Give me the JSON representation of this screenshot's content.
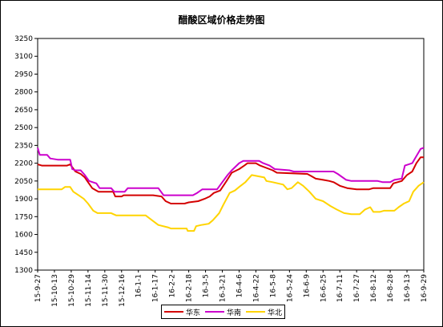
{
  "chart_data": {
    "type": "line",
    "title": "醋酸区域价格走势图",
    "xlabel": "",
    "ylabel": "",
    "ylim": [
      1300,
      3250
    ],
    "yticks": [
      1300,
      1450,
      1600,
      1750,
      1900,
      2050,
      2200,
      2350,
      2500,
      2650,
      2800,
      2950,
      3100,
      3250
    ],
    "grid": false,
    "legend_position": "bottom",
    "x_tick_labels": [
      "15-9-27",
      "15-10-13",
      "15-10-29",
      "15-11-14",
      "15-11-30",
      "15-12-16",
      "16-1-1",
      "16-1-17",
      "16-2-2",
      "16-2-18",
      "16-3-5",
      "16-3-21",
      "16-4-6",
      "16-4-22",
      "16-5-8",
      "16-5-24",
      "16-6-9",
      "16-6-25",
      "16-7-11",
      "16-7-27",
      "16-8-12",
      "16-8-28",
      "16-9-13",
      "16-9-29"
    ],
    "x_start": "2015-09-27",
    "x_end": "2016-09-29",
    "series": [
      {
        "name": "华东",
        "color": "#d40000",
        "points": [
          [
            "2015-09-27",
            2190
          ],
          [
            "2015-10-01",
            2180
          ],
          [
            "2015-10-25",
            2180
          ],
          [
            "2015-10-28",
            2190
          ],
          [
            "2015-11-02",
            2130
          ],
          [
            "2015-11-07",
            2110
          ],
          [
            "2015-11-11",
            2080
          ],
          [
            "2015-11-14",
            2040
          ],
          [
            "2015-11-18",
            1990
          ],
          [
            "2015-11-22",
            1970
          ],
          [
            "2015-11-24",
            1960
          ],
          [
            "2015-12-08",
            1960
          ],
          [
            "2015-12-10",
            1920
          ],
          [
            "2015-12-16",
            1920
          ],
          [
            "2015-12-18",
            1930
          ],
          [
            "2016-01-15",
            1930
          ],
          [
            "2016-01-23",
            1920
          ],
          [
            "2016-01-27",
            1880
          ],
          [
            "2016-02-01",
            1860
          ],
          [
            "2016-02-14",
            1860
          ],
          [
            "2016-02-18",
            1870
          ],
          [
            "2016-02-27",
            1880
          ],
          [
            "2016-03-04",
            1900
          ],
          [
            "2016-03-09",
            1920
          ],
          [
            "2016-03-13",
            1950
          ],
          [
            "2016-03-19",
            1970
          ],
          [
            "2016-03-25",
            2050
          ],
          [
            "2016-03-30",
            2120
          ],
          [
            "2016-04-06",
            2150
          ],
          [
            "2016-04-11",
            2180
          ],
          [
            "2016-04-14",
            2200
          ],
          [
            "2016-04-22",
            2200
          ],
          [
            "2016-04-26",
            2180
          ],
          [
            "2016-05-02",
            2160
          ],
          [
            "2016-05-08",
            2140
          ],
          [
            "2016-05-12",
            2120
          ],
          [
            "2016-06-10",
            2110
          ],
          [
            "2016-06-14",
            2090
          ],
          [
            "2016-06-18",
            2070
          ],
          [
            "2016-06-25",
            2060
          ],
          [
            "2016-07-01",
            2050
          ],
          [
            "2016-07-05",
            2040
          ],
          [
            "2016-07-11",
            2010
          ],
          [
            "2016-07-18",
            1990
          ],
          [
            "2016-07-27",
            1980
          ],
          [
            "2016-08-08",
            1980
          ],
          [
            "2016-08-12",
            1990
          ],
          [
            "2016-08-28",
            1990
          ],
          [
            "2016-08-31",
            2030
          ],
          [
            "2016-09-08",
            2050
          ],
          [
            "2016-09-13",
            2100
          ],
          [
            "2016-09-18",
            2130
          ],
          [
            "2016-09-22",
            2200
          ],
          [
            "2016-09-26",
            2250
          ],
          [
            "2016-09-29",
            2250
          ]
        ]
      },
      {
        "name": "华南",
        "color": "#cc00cc",
        "points": [
          [
            "2015-09-27",
            2330
          ],
          [
            "2015-09-29",
            2270
          ],
          [
            "2015-10-06",
            2270
          ],
          [
            "2015-10-09",
            2240
          ],
          [
            "2015-10-16",
            2230
          ],
          [
            "2015-10-28",
            2230
          ],
          [
            "2015-10-30",
            2150
          ],
          [
            "2015-11-02",
            2140
          ],
          [
            "2015-11-07",
            2140
          ],
          [
            "2015-11-11",
            2100
          ],
          [
            "2015-11-15",
            2050
          ],
          [
            "2015-11-22",
            2030
          ],
          [
            "2015-11-25",
            1990
          ],
          [
            "2015-12-06",
            1990
          ],
          [
            "2015-12-09",
            1960
          ],
          [
            "2015-12-19",
            1960
          ],
          [
            "2015-12-22",
            1990
          ],
          [
            "2016-01-20",
            1990
          ],
          [
            "2016-01-25",
            1930
          ],
          [
            "2016-02-22",
            1930
          ],
          [
            "2016-02-26",
            1950
          ],
          [
            "2016-03-02",
            1980
          ],
          [
            "2016-03-16",
            1980
          ],
          [
            "2016-03-21",
            2040
          ],
          [
            "2016-03-26",
            2100
          ],
          [
            "2016-03-30",
            2140
          ],
          [
            "2016-04-06",
            2200
          ],
          [
            "2016-04-10",
            2220
          ],
          [
            "2016-04-25",
            2220
          ],
          [
            "2016-04-29",
            2200
          ],
          [
            "2016-05-05",
            2180
          ],
          [
            "2016-05-10",
            2150
          ],
          [
            "2016-05-24",
            2140
          ],
          [
            "2016-05-28",
            2130
          ],
          [
            "2016-07-05",
            2130
          ],
          [
            "2016-07-09",
            2110
          ],
          [
            "2016-07-17",
            2060
          ],
          [
            "2016-07-22",
            2050
          ],
          [
            "2016-08-16",
            2050
          ],
          [
            "2016-08-21",
            2040
          ],
          [
            "2016-08-28",
            2040
          ],
          [
            "2016-09-01",
            2060
          ],
          [
            "2016-09-08",
            2070
          ],
          [
            "2016-09-11",
            2180
          ],
          [
            "2016-09-18",
            2200
          ],
          [
            "2016-09-22",
            2260
          ],
          [
            "2016-09-26",
            2320
          ],
          [
            "2016-09-29",
            2330
          ]
        ]
      },
      {
        "name": "华北",
        "color": "#ffd400",
        "points": [
          [
            "2015-09-27",
            1980
          ],
          [
            "2015-10-20",
            1980
          ],
          [
            "2015-10-23",
            2000
          ],
          [
            "2015-10-28",
            2000
          ],
          [
            "2015-10-31",
            1960
          ],
          [
            "2015-11-05",
            1930
          ],
          [
            "2015-11-10",
            1900
          ],
          [
            "2015-11-14",
            1860
          ],
          [
            "2015-11-19",
            1800
          ],
          [
            "2015-11-23",
            1780
          ],
          [
            "2015-12-06",
            1780
          ],
          [
            "2015-12-11",
            1760
          ],
          [
            "2016-01-08",
            1760
          ],
          [
            "2016-01-14",
            1720
          ],
          [
            "2016-01-20",
            1680
          ],
          [
            "2016-01-29",
            1660
          ],
          [
            "2016-02-01",
            1650
          ],
          [
            "2016-02-16",
            1650
          ],
          [
            "2016-02-17",
            1630
          ],
          [
            "2016-02-23",
            1630
          ],
          [
            "2016-02-25",
            1670
          ],
          [
            "2016-03-01",
            1680
          ],
          [
            "2016-03-08",
            1690
          ],
          [
            "2016-03-12",
            1720
          ],
          [
            "2016-03-18",
            1780
          ],
          [
            "2016-03-22",
            1850
          ],
          [
            "2016-03-28",
            1950
          ],
          [
            "2016-04-02",
            1970
          ],
          [
            "2016-04-06",
            2000
          ],
          [
            "2016-04-12",
            2040
          ],
          [
            "2016-04-18",
            2100
          ],
          [
            "2016-04-24",
            2090
          ],
          [
            "2016-04-30",
            2080
          ],
          [
            "2016-05-02",
            2050
          ],
          [
            "2016-05-08",
            2040
          ],
          [
            "2016-05-18",
            2020
          ],
          [
            "2016-05-22",
            1980
          ],
          [
            "2016-05-26",
            1990
          ],
          [
            "2016-06-01",
            2040
          ],
          [
            "2016-06-06",
            2010
          ],
          [
            "2016-06-12",
            1960
          ],
          [
            "2016-06-18",
            1900
          ],
          [
            "2016-06-25",
            1880
          ],
          [
            "2016-07-02",
            1840
          ],
          [
            "2016-07-08",
            1810
          ],
          [
            "2016-07-15",
            1780
          ],
          [
            "2016-07-22",
            1770
          ],
          [
            "2016-07-30",
            1770
          ],
          [
            "2016-08-04",
            1810
          ],
          [
            "2016-08-09",
            1830
          ],
          [
            "2016-08-12",
            1790
          ],
          [
            "2016-08-18",
            1790
          ],
          [
            "2016-08-22",
            1800
          ],
          [
            "2016-09-01",
            1800
          ],
          [
            "2016-09-05",
            1830
          ],
          [
            "2016-09-10",
            1860
          ],
          [
            "2016-09-15",
            1880
          ],
          [
            "2016-09-19",
            1960
          ],
          [
            "2016-09-24",
            2010
          ],
          [
            "2016-09-29",
            2040
          ]
        ]
      }
    ]
  }
}
